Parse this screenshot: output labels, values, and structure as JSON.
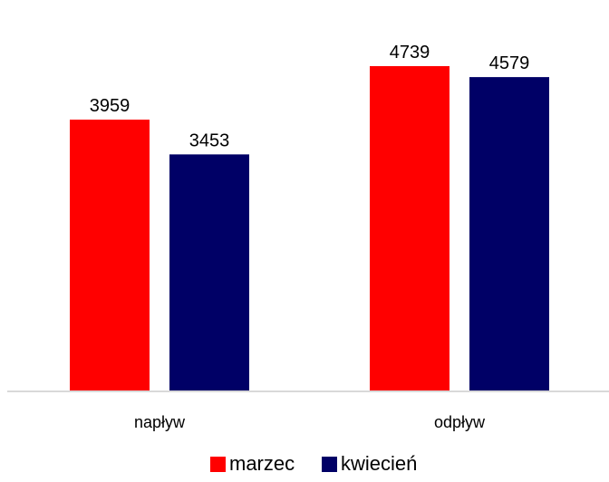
{
  "chart_data": {
    "type": "bar",
    "title": "",
    "categories": [
      "napływ",
      "odpływ"
    ],
    "series": [
      {
        "name": "marzec",
        "values": [
          3959,
          4739
        ]
      },
      {
        "name": "kwiecień",
        "values": [
          3453,
          4579
        ]
      }
    ],
    "xlabel": "",
    "ylabel": "",
    "ylim": [
      0,
      5000
    ],
    "grid": false,
    "legend": "bottom"
  },
  "colors": {
    "marzec": "#ff0000",
    "kwiecień": "#000066",
    "axis": "#d9d9d9",
    "text": "#000000"
  }
}
